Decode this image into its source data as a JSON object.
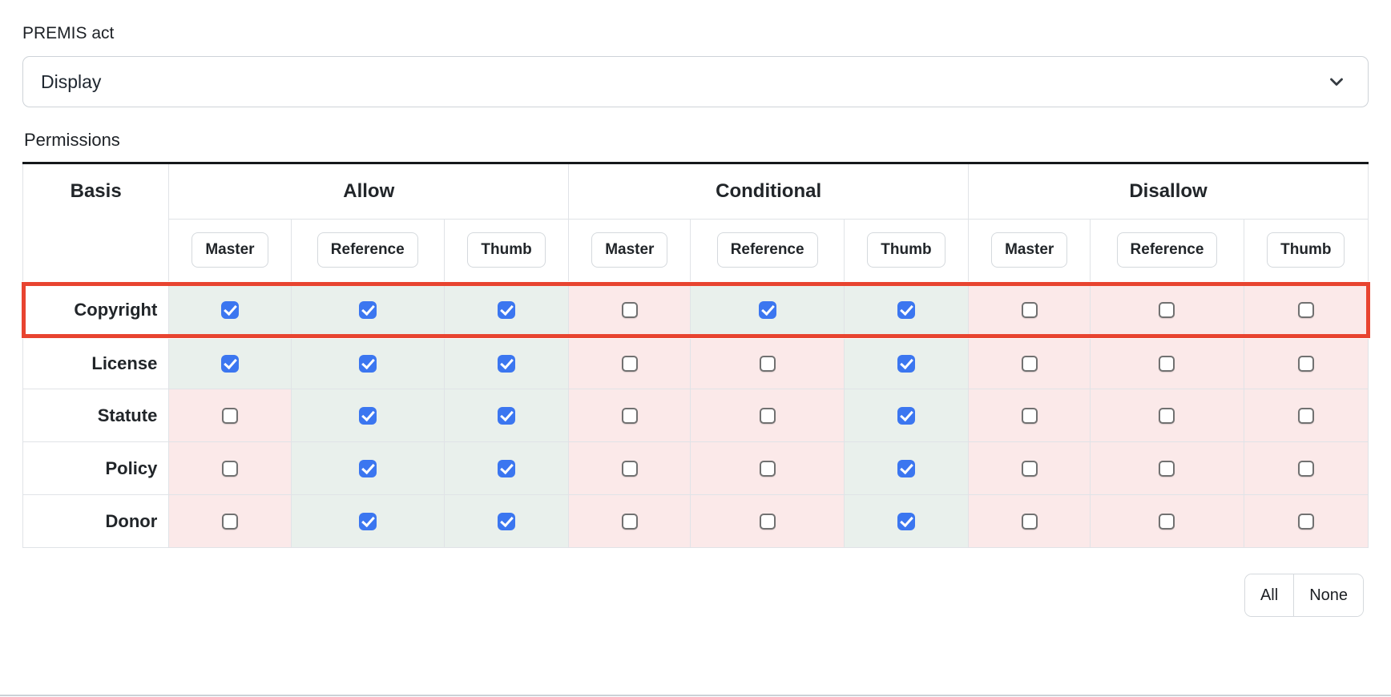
{
  "form": {
    "premis_act": {
      "label": "PREMIS act",
      "value": "Display"
    },
    "permissions_label": "Permissions"
  },
  "table": {
    "basis_header": "Basis",
    "groups": [
      "Allow",
      "Conditional",
      "Disallow"
    ],
    "subcolumns": [
      "Master",
      "Reference",
      "Thumb"
    ],
    "rows": [
      {
        "label": "Copyright",
        "highlighted": true,
        "checks": [
          true,
          true,
          true,
          false,
          true,
          true,
          false,
          false,
          false
        ]
      },
      {
        "label": "License",
        "highlighted": false,
        "checks": [
          true,
          true,
          true,
          false,
          false,
          true,
          false,
          false,
          false
        ]
      },
      {
        "label": "Statute",
        "highlighted": false,
        "checks": [
          false,
          true,
          true,
          false,
          false,
          true,
          false,
          false,
          false
        ]
      },
      {
        "label": "Policy",
        "highlighted": false,
        "checks": [
          false,
          true,
          true,
          false,
          false,
          true,
          false,
          false,
          false
        ]
      },
      {
        "label": "Donor",
        "highlighted": false,
        "checks": [
          false,
          true,
          true,
          false,
          false,
          true,
          false,
          false,
          false
        ]
      }
    ]
  },
  "actions": {
    "all_label": "All",
    "none_label": "None"
  },
  "icons": {
    "select_chevron": "chevron-down"
  },
  "colors": {
    "checked_cell_bg": "#e9f0ec",
    "unchecked_cell_bg": "#fbe9e9",
    "checkbox_accent": "#3b76f0",
    "highlight_border": "#e84430",
    "table_top_border": "#15181b"
  }
}
